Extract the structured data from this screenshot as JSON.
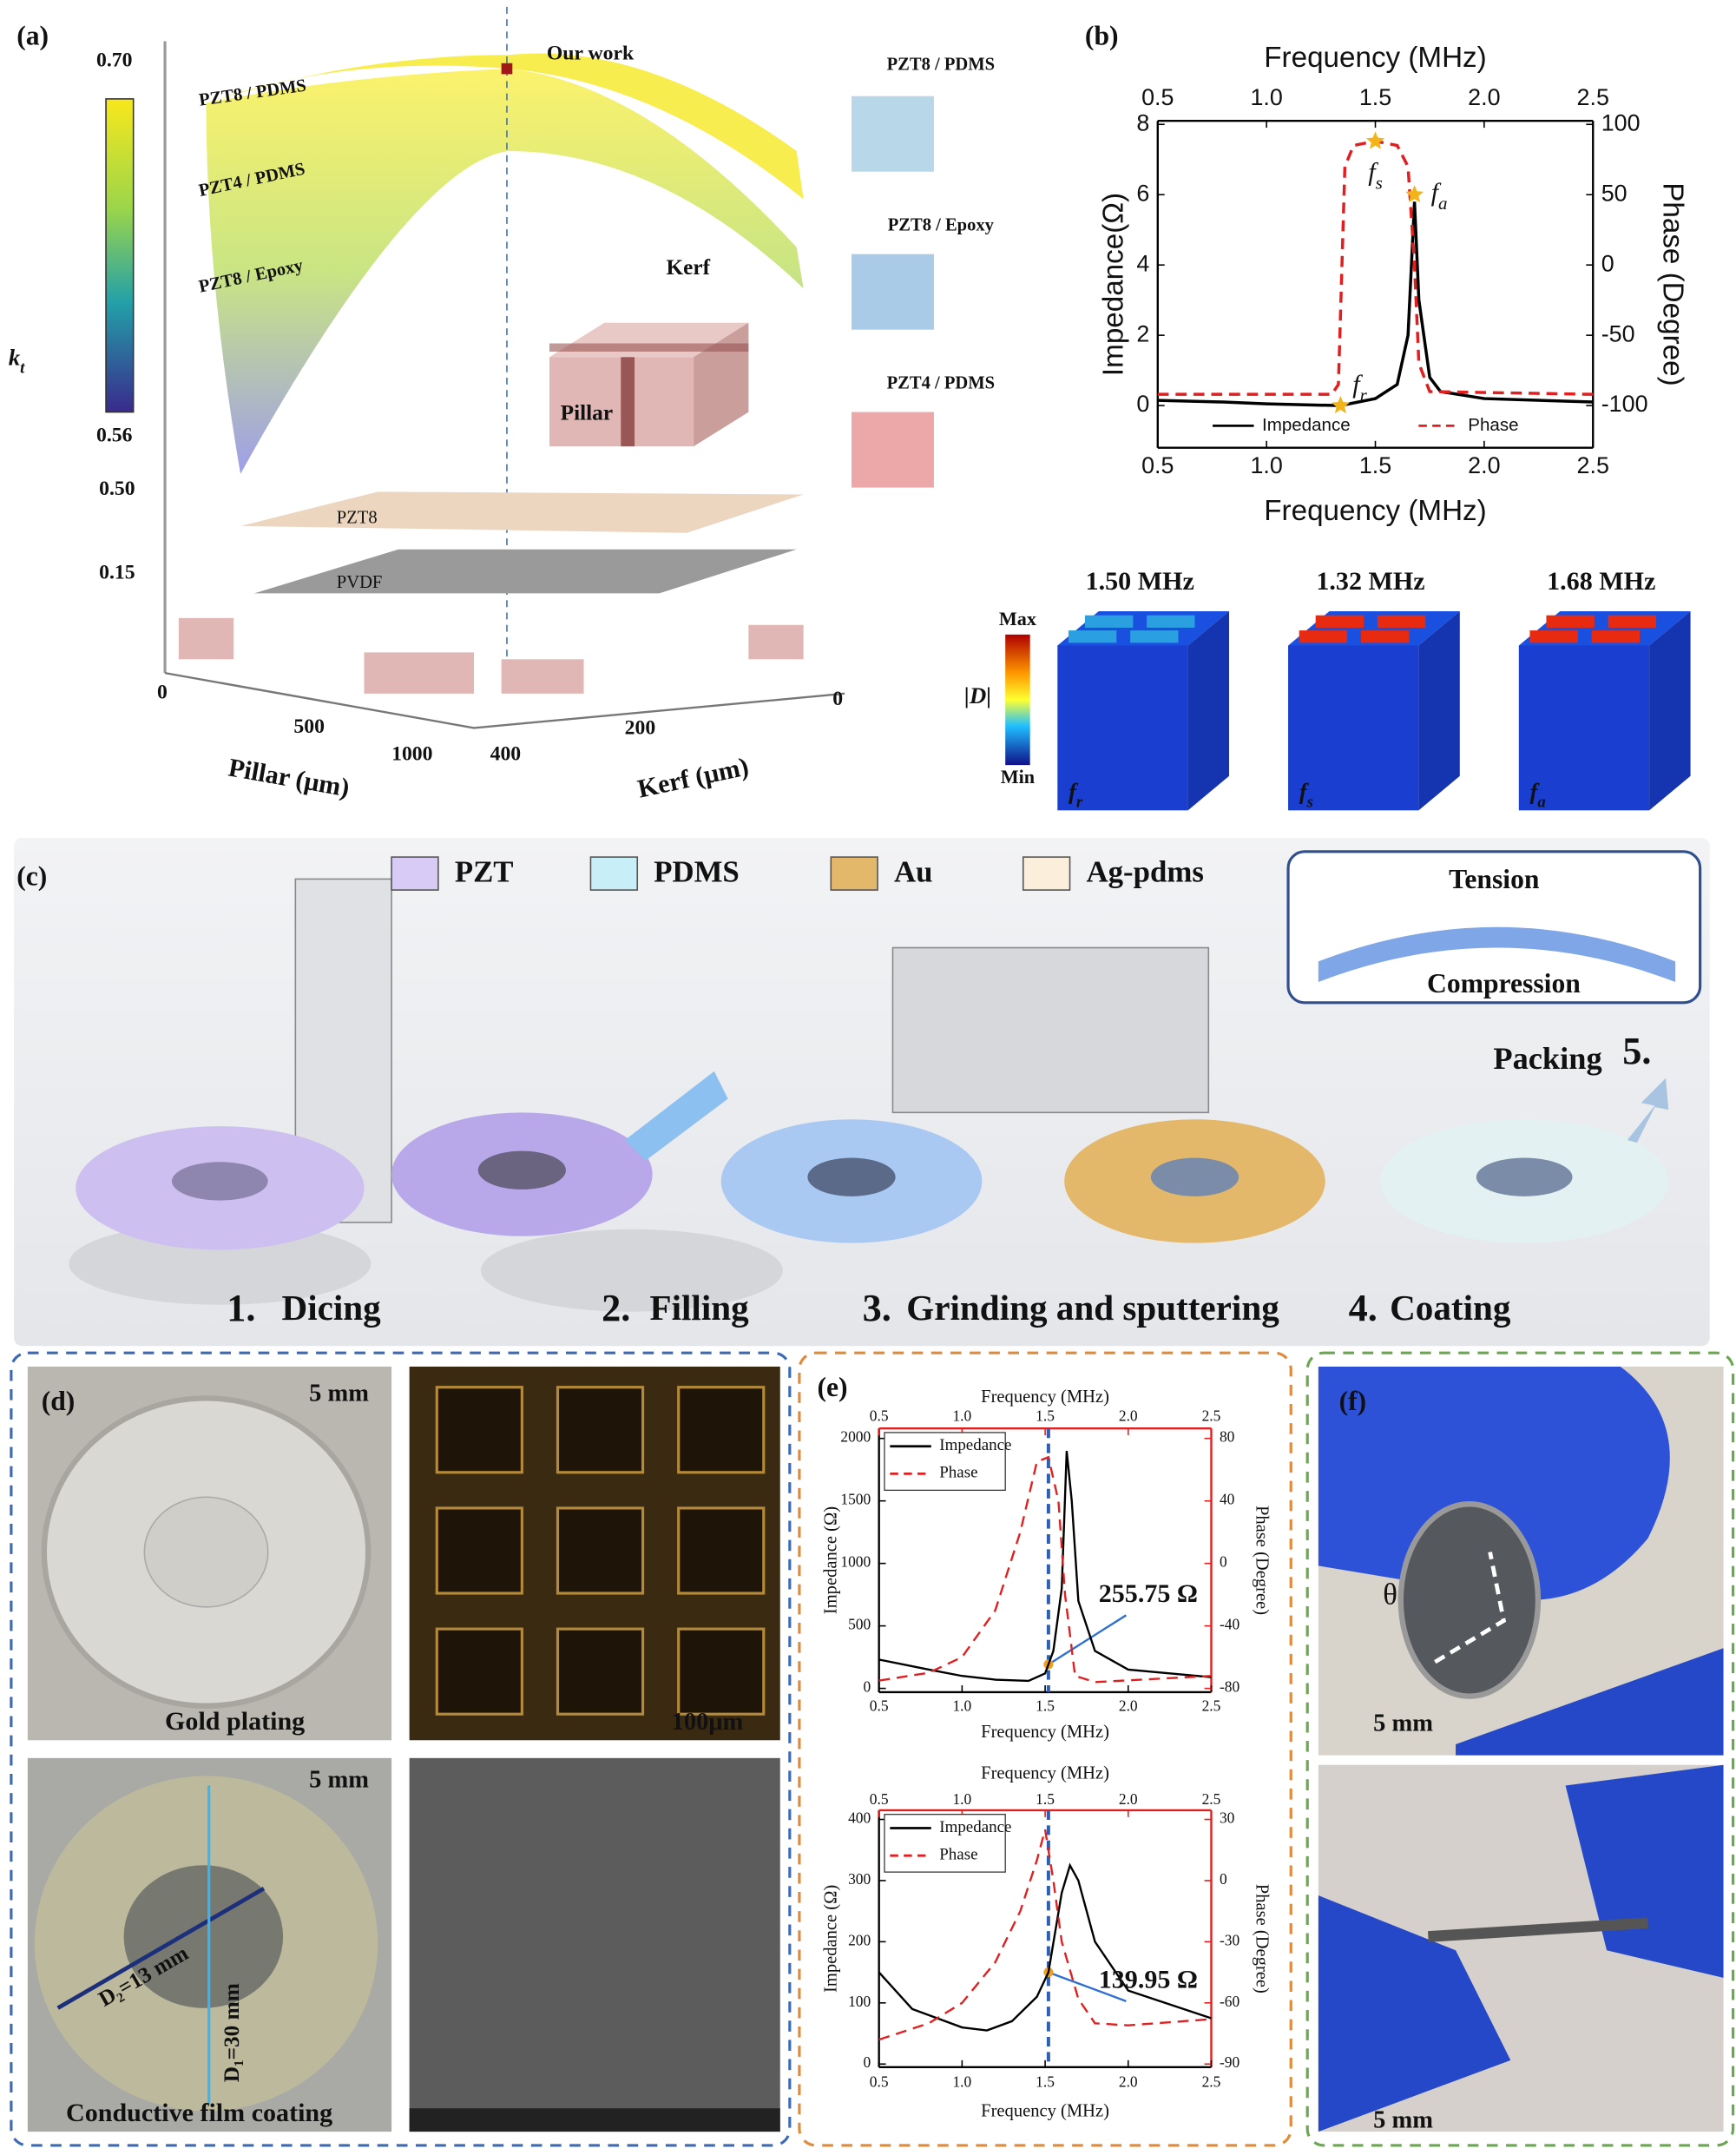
{
  "panel_a": {
    "label": "(a)",
    "colorbar_max": "0.70",
    "colorbar_min": "0.56",
    "kt": {
      "symbol": "k",
      "sub": "t"
    },
    "z_ticks": [
      "0.50",
      "0.15"
    ],
    "surface_labels": [
      "PZT8 / PDMS",
      "PZT4 / PDMS",
      "PZT8 / Epoxy"
    ],
    "our_work": "Our work",
    "kerf": "Kerf",
    "pillar": "Pillar",
    "planes": [
      "PZT8",
      "PVDF"
    ],
    "pillar_ticks": [
      "0",
      "500",
      "1000"
    ],
    "kerf_ticks": [
      "400",
      "200",
      "0"
    ],
    "pillar_axis": "Pillar (μm)",
    "kerf_axis": "Kerf (μm)",
    "side_labels": [
      "PZT8 / PDMS",
      "PZT8 / Epoxy",
      "PZT4 / PDMS"
    ]
  },
  "panel_b": {
    "label": "(b)",
    "modes": [
      "1.50 MHz",
      "1.32 MHz",
      "1.68 MHz"
    ],
    "colorbar_max": "Max",
    "colorbar_min": "Min",
    "quantity": "|D|",
    "mode_symbols": [
      {
        "symbol": "f",
        "sub": "r"
      },
      {
        "symbol": "f",
        "sub": "s"
      },
      {
        "symbol": "f",
        "sub": "a"
      }
    ]
  },
  "panel_c": {
    "label": "(c)",
    "legend": [
      "PZT",
      "PDMS",
      "Au",
      "Ag-pdms"
    ],
    "tension": "Tension",
    "compression": "Compression",
    "packing": "Packing",
    "packing_step": "5.",
    "steps": [
      {
        "number": "1.",
        "name": "Dicing"
      },
      {
        "number": "2.",
        "name": "Filling"
      },
      {
        "number": "3.",
        "name": "Grinding and sputtering"
      },
      {
        "number": "4.",
        "name": "Coating"
      }
    ]
  },
  "panel_d": {
    "label": "(d)",
    "scale_top": "5 mm",
    "gold_plating": "Gold plating",
    "micro_scale": "100μm",
    "scale_bottom": "5 mm",
    "inner_diameter": "D₂=13 mm",
    "outer_diameter": "D₁=30 mm",
    "conductive": "Conductive film coating"
  },
  "panel_e": {
    "label": "(e)"
  },
  "panel_f": {
    "label": "(f)",
    "angle": "θ",
    "scale_top": "5 mm",
    "scale_bottom": "5 mm"
  },
  "chart_data": [
    {
      "type": "line",
      "xlabel": "Frequency (MHz)",
      "x2label": "Frequency (MHz)",
      "ylabel": "Impedance(Ω)",
      "y2label": "Phase (Degree)",
      "xlim": [
        0.5,
        2.5
      ],
      "xticks": [
        0.5,
        {
          "value": 1,
          "label": "1.0"
        },
        1.5,
        {
          "value": 2,
          "label": "2.0"
        },
        2.5
      ],
      "ylim": [
        -1.2,
        8.1
      ],
      "yticks": [
        0,
        2,
        4,
        6,
        8
      ],
      "y2lim": [
        -130,
        102.5
      ],
      "y2ticks": [
        -100,
        -50,
        0,
        50,
        100
      ],
      "axis_color": "#000000",
      "legend": "lower center",
      "series": [
        {
          "name": "Impedance",
          "color": "#000000",
          "dash": "solid",
          "x": [
            0.5,
            0.8,
            1.0,
            1.2,
            1.34,
            1.5,
            1.6,
            1.65,
            1.68,
            1.7,
            1.75,
            1.8,
            2.0,
            2.5
          ],
          "values": [
            0.15,
            0.1,
            0.05,
            0.02,
            0,
            0.2,
            0.6,
            2,
            5.8,
            3,
            0.8,
            0.4,
            0.2,
            0.1
          ]
        },
        {
          "name": "Phase",
          "color": "#e02020",
          "dash": "dashed",
          "axis": "y2",
          "x": [
            0.5,
            1.3,
            1.33,
            1.36,
            1.4,
            1.5,
            1.6,
            1.65,
            1.68,
            1.7,
            1.75,
            2.5
          ],
          "values": [
            -92,
            -92,
            -85,
            70,
            85,
            88,
            85,
            70,
            0,
            -70,
            -90,
            -92
          ]
        }
      ],
      "annotations": [
        {
          "symbol": "f",
          "sub": "s",
          "x": 1.5,
          "y": 88,
          "axis": "y2"
        },
        {
          "symbol": "f",
          "sub": "a",
          "x": 1.68,
          "y": 6
        },
        {
          "symbol": "f",
          "sub": "r",
          "x": 1.34,
          "y": 0
        }
      ]
    },
    {
      "type": "line",
      "xlabel": "Frequency (MHz)",
      "x2label": "Frequency (MHz)",
      "ylabel": "Impedance (Ω)",
      "y2label": "Phase (Degree)",
      "xlim": [
        0.5,
        2.5
      ],
      "xticks": [
        0.5,
        {
          "value": 1,
          "label": "1.0"
        },
        1.5,
        {
          "value": 2,
          "label": "2.0"
        },
        2.5
      ],
      "ylim": [
        -30,
        2080
      ],
      "yticks": [
        0,
        500,
        1000,
        1500,
        2000
      ],
      "y2lim": [
        -82.4,
        86.4
      ],
      "y2ticks": [
        -80,
        -40,
        0,
        40,
        80
      ],
      "axis_color": "#e02020",
      "legend": "upper left",
      "marker_x": 1.52,
      "series": [
        {
          "name": "Impedance",
          "color": "#000000",
          "dash": "solid",
          "x": [
            0.5,
            0.8,
            1.0,
            1.2,
            1.4,
            1.5,
            1.55,
            1.6,
            1.63,
            1.66,
            1.7,
            1.8,
            2.0,
            2.5
          ],
          "values": [
            230,
            150,
            100,
            70,
            60,
            120,
            300,
            800,
            1900,
            1500,
            700,
            300,
            150,
            90
          ]
        },
        {
          "name": "Phase",
          "color": "#e02020",
          "dash": "dashed",
          "axis": "y2",
          "x": [
            0.5,
            0.8,
            1.0,
            1.2,
            1.35,
            1.45,
            1.52,
            1.58,
            1.62,
            1.68,
            1.8,
            2.5
          ],
          "values": [
            -75,
            -70,
            -60,
            -30,
            20,
            65,
            68,
            40,
            -20,
            -72,
            -76,
            -72
          ]
        }
      ],
      "annotations": [
        {
          "text": "255.75 Ω"
        }
      ]
    },
    {
      "type": "line",
      "xlabel": "Frequency (MHz)",
      "x2label": "Frequency (MHz)",
      "ylabel": "Impedance (Ω)",
      "y2label": "Phase (Degree)",
      "xlim": [
        0.5,
        2.5
      ],
      "xticks": [
        0.5,
        {
          "value": 1,
          "label": "1.0"
        },
        1.5,
        {
          "value": 2,
          "label": "2.0"
        },
        2.5
      ],
      "ylim": [
        -5,
        415
      ],
      "yticks": [
        0,
        100,
        200,
        300,
        400
      ],
      "y2lim": [
        -91.5,
        34.5
      ],
      "y2ticks": [
        -90,
        -60,
        -30,
        0,
        30
      ],
      "axis_color": "#e02020",
      "legend": "upper left",
      "marker_x": 1.52,
      "series": [
        {
          "name": "Impedance",
          "color": "#000000",
          "dash": "solid",
          "x": [
            0.5,
            0.7,
            1.0,
            1.15,
            1.3,
            1.45,
            1.52,
            1.6,
            1.65,
            1.7,
            1.8,
            2.0,
            2.5
          ],
          "values": [
            150,
            90,
            60,
            55,
            70,
            110,
            150,
            280,
            325,
            300,
            200,
            120,
            75
          ]
        },
        {
          "name": "Phase",
          "color": "#e02020",
          "dash": "dashed",
          "axis": "y2",
          "x": [
            0.5,
            0.8,
            1.0,
            1.2,
            1.35,
            1.45,
            1.5,
            1.55,
            1.6,
            1.7,
            1.8,
            2.0,
            2.5
          ],
          "values": [
            -78,
            -70,
            -60,
            -40,
            -15,
            10,
            25,
            0,
            -30,
            -58,
            -70,
            -71,
            -68
          ]
        }
      ],
      "annotations": [
        {
          "text": "139.95 Ω"
        }
      ]
    }
  ]
}
